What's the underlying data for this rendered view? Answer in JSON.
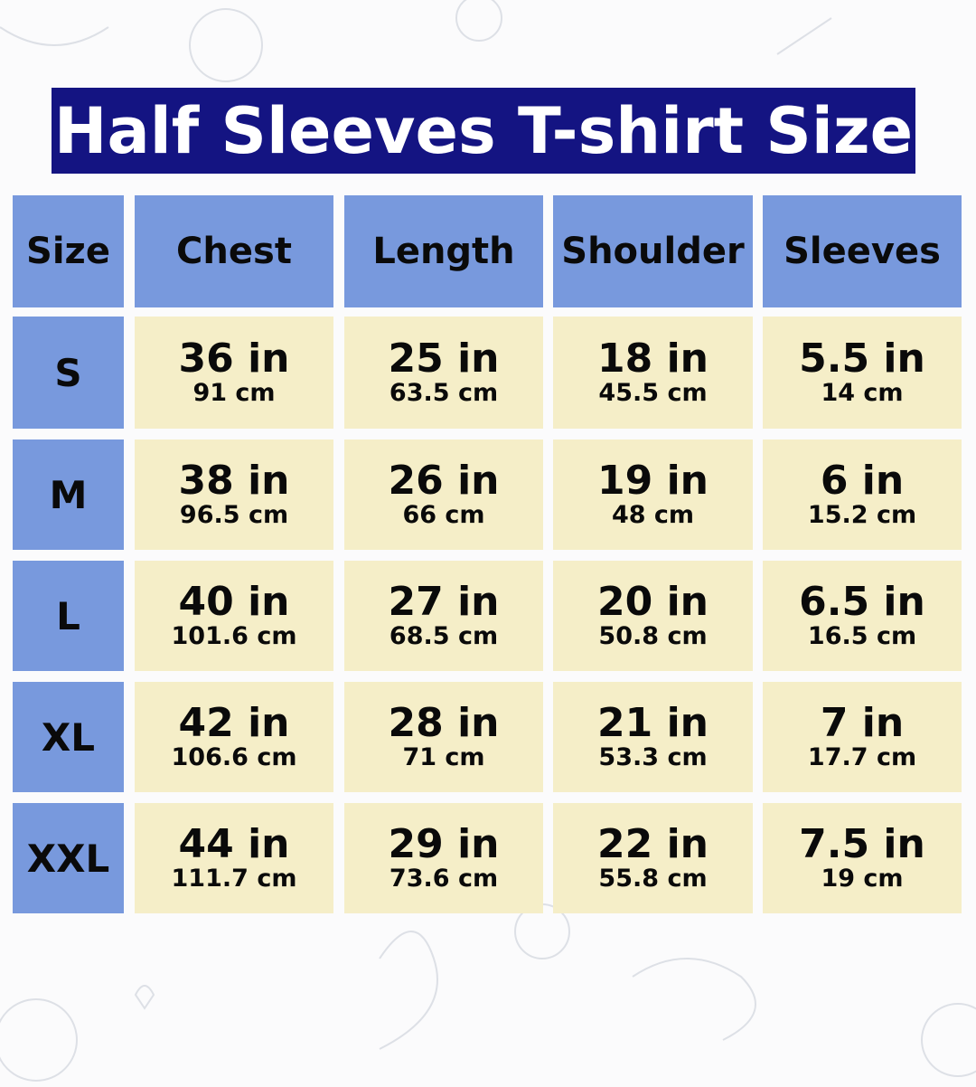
{
  "title": "Half Sleeves T-shirt Size",
  "colors": {
    "title_bg": "#141482",
    "header_bg": "#7899dd",
    "cell_bg": "#f5eec8"
  },
  "headers": [
    "Size",
    "Chest",
    "Length",
    "Shoulder",
    "Sleeves"
  ],
  "rows": [
    {
      "size": "S",
      "values": [
        {
          "in": "36 in",
          "cm": "91 cm"
        },
        {
          "in": "25 in",
          "cm": "63.5 cm"
        },
        {
          "in": "18 in",
          "cm": "45.5 cm"
        },
        {
          "in": "5.5 in",
          "cm": "14 cm"
        }
      ]
    },
    {
      "size": "M",
      "values": [
        {
          "in": "38 in",
          "cm": "96.5 cm"
        },
        {
          "in": "26 in",
          "cm": "66 cm"
        },
        {
          "in": "19 in",
          "cm": "48 cm"
        },
        {
          "in": "6 in",
          "cm": "15.2 cm"
        }
      ]
    },
    {
      "size": "L",
      "values": [
        {
          "in": "40 in",
          "cm": "101.6 cm"
        },
        {
          "in": "27 in",
          "cm": "68.5 cm"
        },
        {
          "in": "20 in",
          "cm": "50.8 cm"
        },
        {
          "in": "6.5 in",
          "cm": "16.5 cm"
        }
      ]
    },
    {
      "size": "XL",
      "values": [
        {
          "in": "42 in",
          "cm": "106.6 cm"
        },
        {
          "in": "28 in",
          "cm": "71 cm"
        },
        {
          "in": "21 in",
          "cm": "53.3 cm"
        },
        {
          "in": "7 in",
          "cm": "17.7 cm"
        }
      ]
    },
    {
      "size": "XXL",
      "values": [
        {
          "in": "44 in",
          "cm": "111.7 cm"
        },
        {
          "in": "29 in",
          "cm": "73.6 cm"
        },
        {
          "in": "22 in",
          "cm": "55.8 cm"
        },
        {
          "in": "7.5 in",
          "cm": "19 cm"
        }
      ]
    }
  ]
}
